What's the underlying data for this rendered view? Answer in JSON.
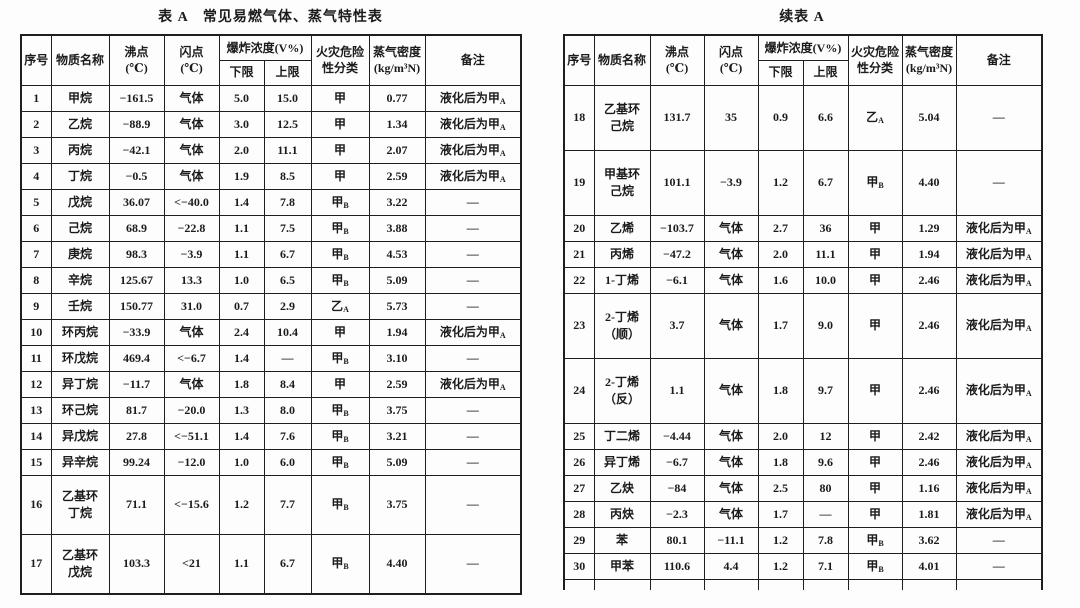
{
  "page": {
    "background_color": "#fdfdfd",
    "border_color": "#1f1f1f",
    "text_color": "#1b1b1b"
  },
  "tables": [
    {
      "title": "表 A　常见易燃气体、蒸气特性表",
      "headers": {
        "seq": "序号",
        "name": "物质名称",
        "bp": "沸点\n(℃)",
        "fp": "闪点\n(℃)",
        "explosive": "爆炸浓度(V%)",
        "lel": "下限",
        "uel": "上限",
        "hazard": "火灾危险\n性分类",
        "density": "蒸气密度\n(kg/m³N)",
        "note": "备注"
      },
      "truncated": false,
      "rows": [
        {
          "seq": "1",
          "name": "甲烷",
          "bp": "−161.5",
          "fp": "气体",
          "lel": "5.0",
          "uel": "15.0",
          "cls": "甲",
          "cls_sub": "",
          "density": "0.77",
          "note": "液化后为甲",
          "note_sub": "A"
        },
        {
          "seq": "2",
          "name": "乙烷",
          "bp": "−88.9",
          "fp": "气体",
          "lel": "3.0",
          "uel": "12.5",
          "cls": "甲",
          "cls_sub": "",
          "density": "1.34",
          "note": "液化后为甲",
          "note_sub": "A"
        },
        {
          "seq": "3",
          "name": "丙烷",
          "bp": "−42.1",
          "fp": "气体",
          "lel": "2.0",
          "uel": "11.1",
          "cls": "甲",
          "cls_sub": "",
          "density": "2.07",
          "note": "液化后为甲",
          "note_sub": "A"
        },
        {
          "seq": "4",
          "name": "丁烷",
          "bp": "−0.5",
          "fp": "气体",
          "lel": "1.9",
          "uel": "8.5",
          "cls": "甲",
          "cls_sub": "",
          "density": "2.59",
          "note": "液化后为甲",
          "note_sub": "A"
        },
        {
          "seq": "5",
          "name": "戊烷",
          "bp": "36.07",
          "fp": "<−40.0",
          "lel": "1.4",
          "uel": "7.8",
          "cls": "甲",
          "cls_sub": "B",
          "density": "3.22",
          "note": "—",
          "note_sub": ""
        },
        {
          "seq": "6",
          "name": "己烷",
          "bp": "68.9",
          "fp": "−22.8",
          "lel": "1.1",
          "uel": "7.5",
          "cls": "甲",
          "cls_sub": "B",
          "density": "3.88",
          "note": "—",
          "note_sub": ""
        },
        {
          "seq": "7",
          "name": "庚烷",
          "bp": "98.3",
          "fp": "−3.9",
          "lel": "1.1",
          "uel": "6.7",
          "cls": "甲",
          "cls_sub": "B",
          "density": "4.53",
          "note": "—",
          "note_sub": ""
        },
        {
          "seq": "8",
          "name": "辛烷",
          "bp": "125.67",
          "fp": "13.3",
          "lel": "1.0",
          "uel": "6.5",
          "cls": "甲",
          "cls_sub": "B",
          "density": "5.09",
          "note": "—",
          "note_sub": ""
        },
        {
          "seq": "9",
          "name": "壬烷",
          "bp": "150.77",
          "fp": "31.0",
          "lel": "0.7",
          "uel": "2.9",
          "cls": "乙",
          "cls_sub": "A",
          "density": "5.73",
          "note": "—",
          "note_sub": ""
        },
        {
          "seq": "10",
          "name": "环丙烷",
          "bp": "−33.9",
          "fp": "气体",
          "lel": "2.4",
          "uel": "10.4",
          "cls": "甲",
          "cls_sub": "",
          "density": "1.94",
          "note": "液化后为甲",
          "note_sub": "A"
        },
        {
          "seq": "11",
          "name": "环戊烷",
          "bp": "469.4",
          "fp": "<−6.7",
          "lel": "1.4",
          "uel": "—",
          "cls": "甲",
          "cls_sub": "B",
          "density": "3.10",
          "note": "—",
          "note_sub": ""
        },
        {
          "seq": "12",
          "name": "异丁烷",
          "bp": "−11.7",
          "fp": "气体",
          "lel": "1.8",
          "uel": "8.4",
          "cls": "甲",
          "cls_sub": "",
          "density": "2.59",
          "note": "液化后为甲",
          "note_sub": "A"
        },
        {
          "seq": "13",
          "name": "环己烷",
          "bp": "81.7",
          "fp": "−20.0",
          "lel": "1.3",
          "uel": "8.0",
          "cls": "甲",
          "cls_sub": "B",
          "density": "3.75",
          "note": "—",
          "note_sub": ""
        },
        {
          "seq": "14",
          "name": "异戊烷",
          "bp": "27.8",
          "fp": "<−51.1",
          "lel": "1.4",
          "uel": "7.6",
          "cls": "甲",
          "cls_sub": "B",
          "density": "3.21",
          "note": "—",
          "note_sub": ""
        },
        {
          "seq": "15",
          "name": "异辛烷",
          "bp": "99.24",
          "fp": "−12.0",
          "lel": "1.0",
          "uel": "6.0",
          "cls": "甲",
          "cls_sub": "B",
          "density": "5.09",
          "note": "—",
          "note_sub": ""
        },
        {
          "seq": "16",
          "name": "乙基环\n丁烷",
          "bp": "71.1",
          "fp": "<−15.6",
          "lel": "1.2",
          "uel": "7.7",
          "cls": "甲",
          "cls_sub": "B",
          "density": "3.75",
          "note": "—",
          "note_sub": ""
        },
        {
          "seq": "17",
          "name": "乙基环\n戊烷",
          "bp": "103.3",
          "fp": "<21",
          "lel": "1.1",
          "uel": "6.7",
          "cls": "甲",
          "cls_sub": "B",
          "density": "4.40",
          "note": "—",
          "note_sub": ""
        }
      ]
    },
    {
      "title": "续表 A",
      "headers": {
        "seq": "序号",
        "name": "物质名称",
        "bp": "沸点\n(℃)",
        "fp": "闪点\n(℃)",
        "explosive": "爆炸浓度(V%)",
        "lel": "下限",
        "uel": "上限",
        "hazard": "火灾危险\n性分类",
        "density": "蒸气密度\n(kg/m³N)",
        "note": "备注"
      },
      "truncated": true,
      "rows": [
        {
          "seq": "18",
          "name": "乙基环\n己烷",
          "bp": "131.7",
          "fp": "35",
          "lel": "0.9",
          "uel": "6.6",
          "cls": "乙",
          "cls_sub": "A",
          "density": "5.04",
          "note": "—",
          "note_sub": ""
        },
        {
          "seq": "19",
          "name": "甲基环\n己烷",
          "bp": "101.1",
          "fp": "−3.9",
          "lel": "1.2",
          "uel": "6.7",
          "cls": "甲",
          "cls_sub": "B",
          "density": "4.40",
          "note": "—",
          "note_sub": ""
        },
        {
          "seq": "20",
          "name": "乙烯",
          "bp": "−103.7",
          "fp": "气体",
          "lel": "2.7",
          "uel": "36",
          "cls": "甲",
          "cls_sub": "",
          "density": "1.29",
          "note": "液化后为甲",
          "note_sub": "A"
        },
        {
          "seq": "21",
          "name": "丙烯",
          "bp": "−47.2",
          "fp": "气体",
          "lel": "2.0",
          "uel": "11.1",
          "cls": "甲",
          "cls_sub": "",
          "density": "1.94",
          "note": "液化后为甲",
          "note_sub": "A"
        },
        {
          "seq": "22",
          "name": "1-丁烯",
          "bp": "−6.1",
          "fp": "气体",
          "lel": "1.6",
          "uel": "10.0",
          "cls": "甲",
          "cls_sub": "",
          "density": "2.46",
          "note": "液化后为甲",
          "note_sub": "A"
        },
        {
          "seq": "23",
          "name": "2-丁烯\n（顺）",
          "bp": "3.7",
          "fp": "气体",
          "lel": "1.7",
          "uel": "9.0",
          "cls": "甲",
          "cls_sub": "",
          "density": "2.46",
          "note": "液化后为甲",
          "note_sub": "A"
        },
        {
          "seq": "24",
          "name": "2-丁烯\n（反）",
          "bp": "1.1",
          "fp": "气体",
          "lel": "1.8",
          "uel": "9.7",
          "cls": "甲",
          "cls_sub": "",
          "density": "2.46",
          "note": "液化后为甲",
          "note_sub": "A"
        },
        {
          "seq": "25",
          "name": "丁二烯",
          "bp": "−4.44",
          "fp": "气体",
          "lel": "2.0",
          "uel": "12",
          "cls": "甲",
          "cls_sub": "",
          "density": "2.42",
          "note": "液化后为甲",
          "note_sub": "A"
        },
        {
          "seq": "26",
          "name": "异丁烯",
          "bp": "−6.7",
          "fp": "气体",
          "lel": "1.8",
          "uel": "9.6",
          "cls": "甲",
          "cls_sub": "",
          "density": "2.46",
          "note": "液化后为甲",
          "note_sub": "A"
        },
        {
          "seq": "27",
          "name": "乙炔",
          "bp": "−84",
          "fp": "气体",
          "lel": "2.5",
          "uel": "80",
          "cls": "甲",
          "cls_sub": "",
          "density": "1.16",
          "note": "液化后为甲",
          "note_sub": "A"
        },
        {
          "seq": "28",
          "name": "丙炔",
          "bp": "−2.3",
          "fp": "气体",
          "lel": "1.7",
          "uel": "—",
          "cls": "甲",
          "cls_sub": "",
          "density": "1.81",
          "note": "液化后为甲",
          "note_sub": "A"
        },
        {
          "seq": "29",
          "name": "苯",
          "bp": "80.1",
          "fp": "−11.1",
          "lel": "1.2",
          "uel": "7.8",
          "cls": "甲",
          "cls_sub": "B",
          "density": "3.62",
          "note": "—",
          "note_sub": ""
        },
        {
          "seq": "30",
          "name": "甲苯",
          "bp": "110.6",
          "fp": "4.4",
          "lel": "1.2",
          "uel": "7.1",
          "cls": "甲",
          "cls_sub": "B",
          "density": "4.01",
          "note": "—",
          "note_sub": ""
        }
      ]
    }
  ]
}
